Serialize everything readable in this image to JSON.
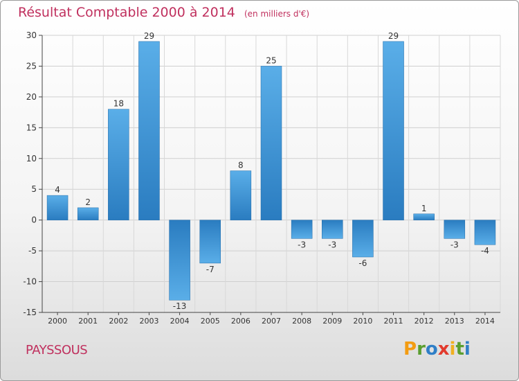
{
  "header": {
    "title": "Résultat Comptable 2000 à 2014",
    "unit": "(en milliers d'€)"
  },
  "footer": {
    "commune": "PAYSSOUS",
    "logo_letters": [
      "P",
      "r",
      "o",
      "x",
      "i",
      "t",
      "i"
    ],
    "logo_colors": [
      "#f39c12",
      "#5a9e2f",
      "#2f7fc7",
      "#e23a2d",
      "#f0b020",
      "#5a9e2f",
      "#2f7fc7"
    ]
  },
  "colors": {
    "bar_light": "#5aaee8",
    "bar_dark": "#2a7cc0",
    "title": "#c0305e",
    "axis": "#444444"
  },
  "chart_data": {
    "type": "bar",
    "title": "Résultat Comptable 2000 à 2014",
    "xlabel": "",
    "ylabel": "",
    "categories": [
      "2000",
      "2001",
      "2002",
      "2003",
      "2004",
      "2005",
      "2006",
      "2007",
      "2008",
      "2009",
      "2010",
      "2011",
      "2012",
      "2013",
      "2014"
    ],
    "values": [
      4,
      2,
      18,
      29,
      -13,
      -7,
      8,
      25,
      -3,
      -3,
      -6,
      29,
      1,
      -3,
      -4
    ],
    "ylim": [
      -15,
      30
    ],
    "yticks": [
      30,
      25,
      20,
      15,
      10,
      5,
      0,
      -5,
      -10,
      -15
    ],
    "grid": true
  }
}
